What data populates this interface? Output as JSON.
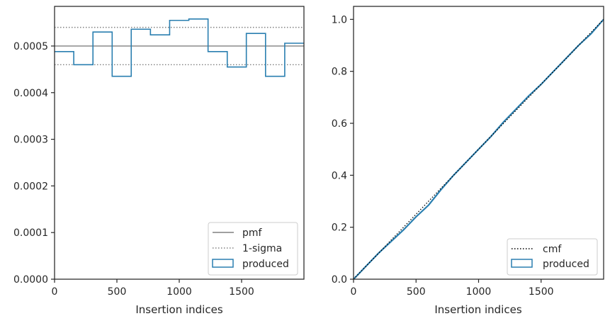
{
  "colors": {
    "produced": "#2a7fb0",
    "pmf": "#808080",
    "sigma": "#808080",
    "cmf": "#000000",
    "axes": "#262626"
  },
  "chart_data": [
    {
      "type": "step",
      "xlabel": "Insertion indices",
      "ylabel": "",
      "xlim": [
        0,
        2000
      ],
      "ylim": [
        0,
        0.000585
      ],
      "xticks": [
        0,
        500,
        1000,
        1500
      ],
      "xtick_labels": [
        "0",
        "500",
        "1000",
        "1500"
      ],
      "yticks": [
        0,
        0.0001,
        0.0002,
        0.0003,
        0.0004,
        0.0005
      ],
      "ytick_labels": [
        "0.0000",
        "0.0001",
        "0.0002",
        "0.0003",
        "0.0004",
        "0.0005"
      ],
      "pmf": 0.0005,
      "sigma_upper": 0.00054,
      "sigma_lower": 0.00046,
      "bin_edges": [
        0,
        154,
        308,
        462,
        615,
        769,
        923,
        1077,
        1231,
        1385,
        1538,
        1692,
        1846,
        2000
      ],
      "produced": [
        0.000488,
        0.00046,
        0.00053,
        0.000435,
        0.000536,
        0.000524,
        0.000555,
        0.000558,
        0.000488,
        0.000455,
        0.000527,
        0.000435,
        0.000506
      ],
      "legend": {
        "position": "lower-right",
        "entries": [
          "pmf",
          "1-sigma",
          "produced"
        ]
      },
      "grid": false
    },
    {
      "type": "line",
      "xlabel": "Insertion indices",
      "ylabel": "",
      "xlim": [
        0,
        2000
      ],
      "ylim": [
        0,
        1.05
      ],
      "xticks": [
        0,
        500,
        1000,
        1500
      ],
      "xtick_labels": [
        "0",
        "500",
        "1000",
        "1500"
      ],
      "yticks": [
        0,
        0.2,
        0.4,
        0.6,
        0.8,
        1.0
      ],
      "ytick_labels": [
        "0.0",
        "0.2",
        "0.4",
        "0.6",
        "0.8",
        "1.0"
      ],
      "cmf": {
        "x": [
          0,
          2000
        ],
        "y": [
          0,
          1.0
        ]
      },
      "produced": {
        "x": [
          0,
          100,
          200,
          300,
          400,
          500,
          600,
          700,
          800,
          900,
          1000,
          1100,
          1200,
          1300,
          1400,
          1500,
          1600,
          1700,
          1800,
          1900,
          2000
        ],
        "y": [
          0,
          0.05,
          0.1,
          0.145,
          0.19,
          0.24,
          0.285,
          0.345,
          0.4,
          0.45,
          0.5,
          0.55,
          0.605,
          0.655,
          0.705,
          0.75,
          0.8,
          0.85,
          0.9,
          0.945,
          1.0
        ]
      },
      "legend": {
        "position": "lower-right",
        "entries": [
          "cmf",
          "produced"
        ]
      },
      "grid": false
    }
  ]
}
